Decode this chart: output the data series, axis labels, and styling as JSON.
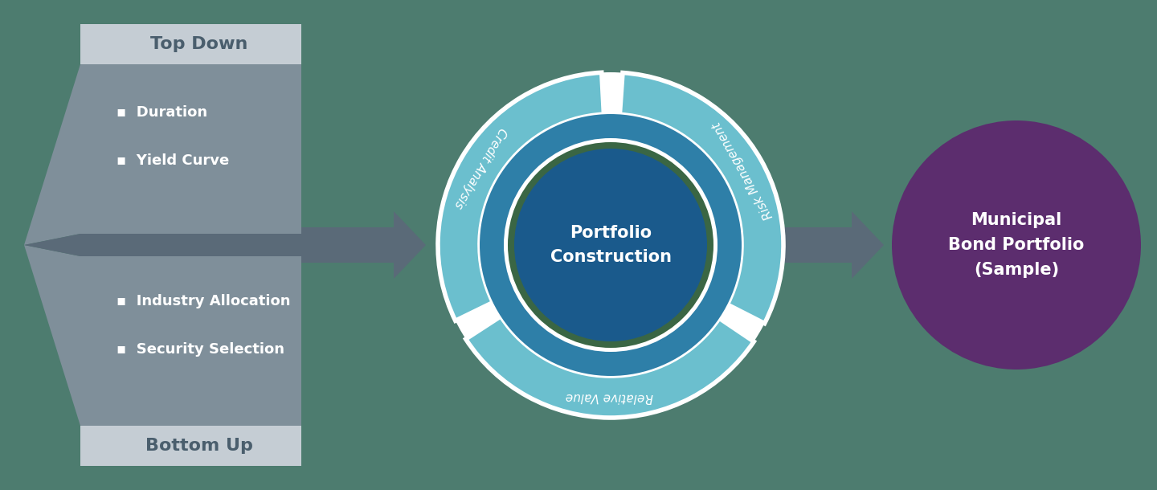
{
  "bg_color": "#4d7c6f",
  "left_panel_light": "#c5cdd4",
  "left_panel_mid": "#7f8f9a",
  "left_panel_dark": "#5a6a78",
  "left_label_top": "Top Down",
  "left_label_bottom": "Bottom Up",
  "left_label_color": "#4a5e6d",
  "left_items_color": "#ffffff",
  "left_items_top": [
    "Duration",
    "Yield Curve"
  ],
  "left_items_bottom": [
    "Industry Allocation",
    "Security Selection"
  ],
  "arrow_color": "#5a6a78",
  "outer_ring_color": "#6bbfce",
  "mid_ring_color": "#2e7fa8",
  "inner_circle_color": "#1a5a8c",
  "inner_border_color": "#3a6644",
  "center_text": "Portfolio\nConstruction",
  "center_text_color": "#ffffff",
  "segment_labels": [
    "Credit Analysis",
    "Relative Value",
    "Risk Management"
  ],
  "segment_label_color": "#ffffff",
  "final_circle_color": "#5c2d6e",
  "final_text": "Municipal\nBond Portfolio\n(Sample)",
  "final_text_color": "#ffffff"
}
